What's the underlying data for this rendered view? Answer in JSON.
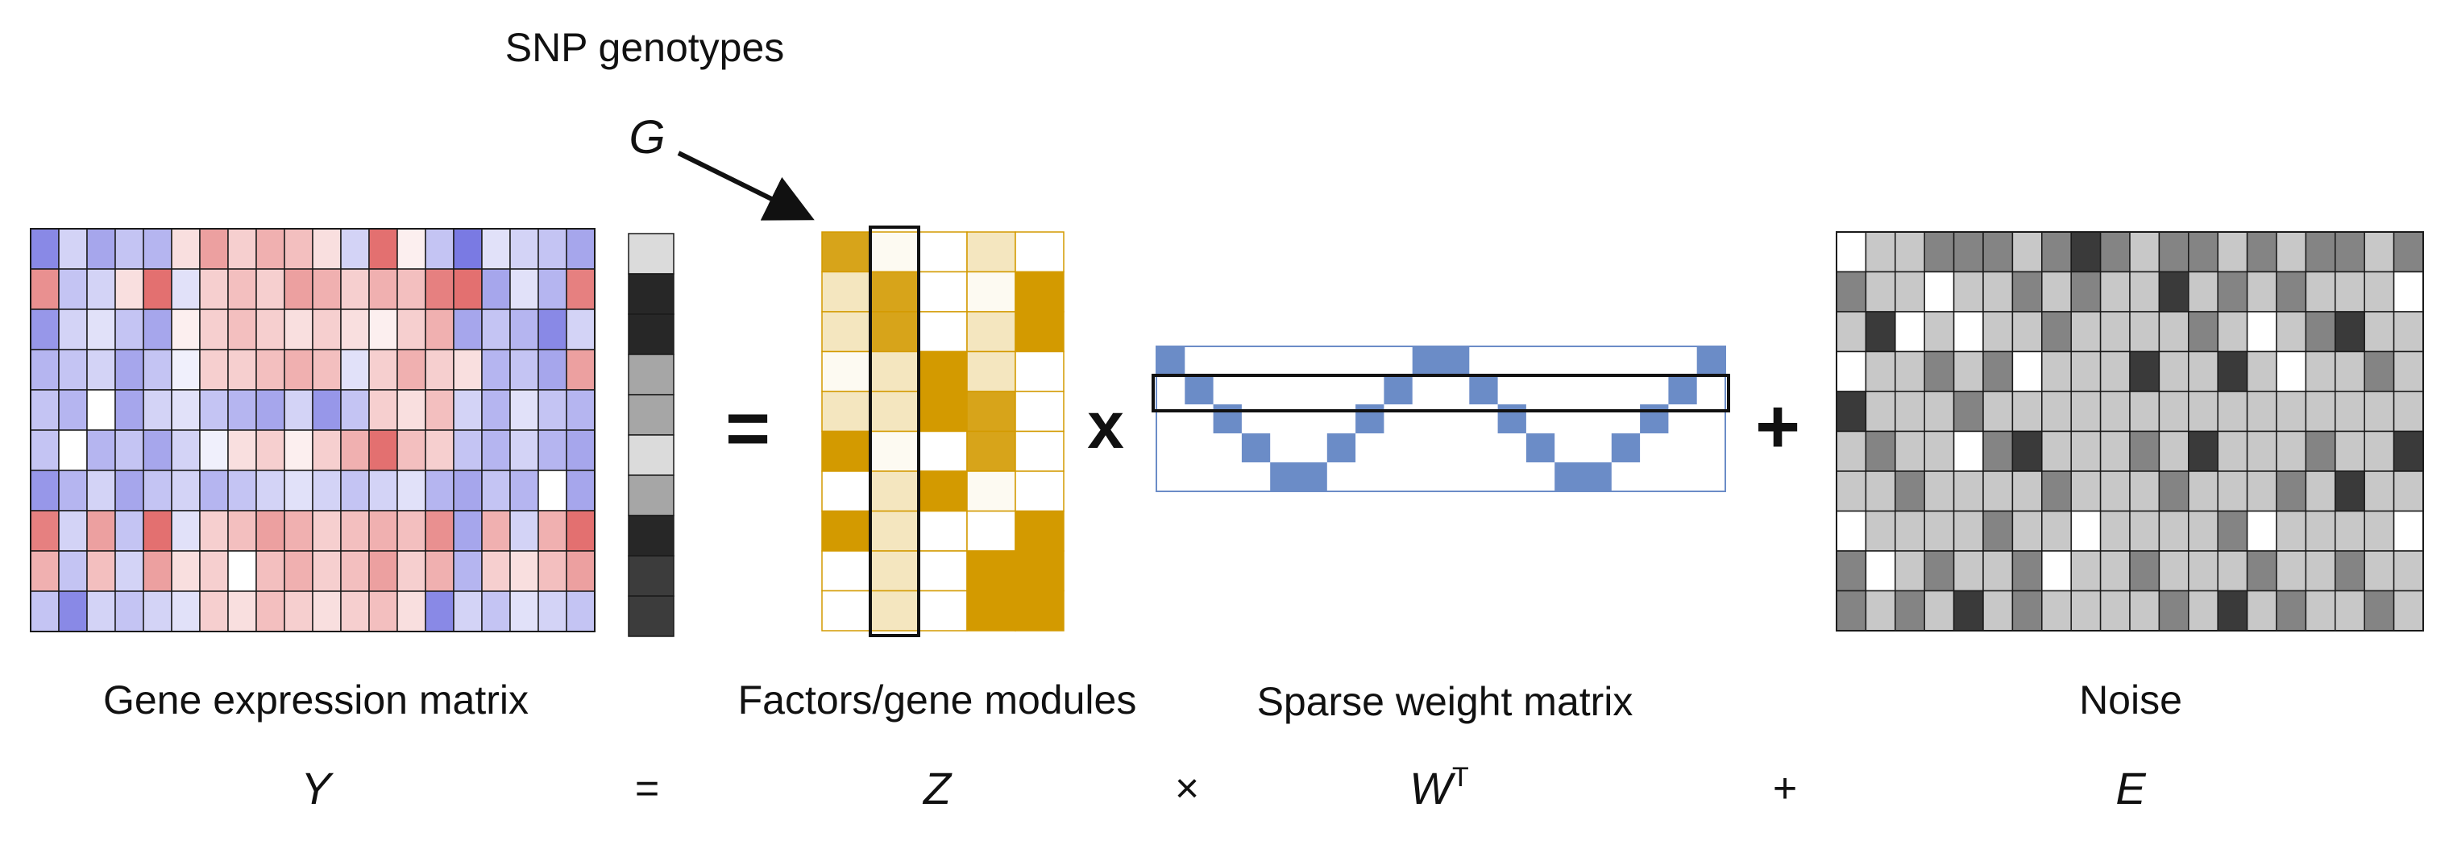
{
  "labels": {
    "snp_title": "SNP genotypes",
    "g_symbol": "G",
    "gene_expression": "Gene expression matrix",
    "factors": "Factors/gene modules",
    "sparse_weight": "Sparse weight matrix",
    "noise": "Noise"
  },
  "operators": {
    "equals": "=",
    "times": "x",
    "plus": "+"
  },
  "formula": {
    "y": "Y",
    "equals": "=",
    "z": "Z",
    "times": "×",
    "w": "W",
    "w_superscript": "T",
    "plus": "+",
    "e": "E"
  },
  "colors": {
    "expression_blue": "#6b6be0",
    "expression_red": "#e06060",
    "factor_gold": "#d39a00",
    "weight_blue": "#6b8cc7",
    "noise_dark": "#3a3a3a",
    "grid_line": "#1a1a1a"
  },
  "matrices": {
    "expression": {
      "rows": 10,
      "cols": 20,
      "values": [
        [
          -0.8,
          -0.3,
          -0.6,
          -0.4,
          -0.5,
          0.2,
          0.6,
          0.3,
          0.5,
          0.4,
          0.2,
          -0.3,
          0.9,
          0.1,
          -0.4,
          -0.9,
          -0.2,
          -0.3,
          -0.4,
          -0.6
        ],
        [
          0.7,
          -0.4,
          -0.3,
          0.2,
          0.9,
          -0.2,
          0.3,
          0.4,
          0.3,
          0.6,
          0.5,
          0.3,
          0.5,
          0.4,
          0.8,
          0.9,
          -0.6,
          -0.2,
          -0.5,
          0.8
        ],
        [
          -0.7,
          -0.3,
          -0.2,
          -0.4,
          -0.6,
          0.1,
          0.3,
          0.4,
          0.3,
          0.2,
          0.3,
          0.2,
          0.1,
          0.3,
          0.5,
          -0.6,
          -0.4,
          -0.5,
          -0.8,
          -0.3
        ],
        [
          -0.5,
          -0.4,
          -0.3,
          -0.6,
          -0.4,
          -0.1,
          0.3,
          0.3,
          0.4,
          0.5,
          0.4,
          -0.2,
          0.3,
          0.5,
          0.3,
          0.2,
          -0.5,
          -0.4,
          -0.6,
          0.6
        ],
        [
          -0.4,
          -0.5,
          0.0,
          -0.6,
          -0.3,
          -0.2,
          -0.4,
          -0.5,
          -0.6,
          -0.3,
          -0.7,
          -0.4,
          0.3,
          0.2,
          0.4,
          -0.3,
          -0.5,
          -0.2,
          -0.4,
          -0.5
        ],
        [
          -0.4,
          0.0,
          -0.5,
          -0.4,
          -0.6,
          -0.3,
          -0.1,
          0.2,
          0.3,
          0.1,
          0.3,
          0.5,
          0.9,
          0.4,
          0.3,
          -0.4,
          -0.5,
          -0.3,
          -0.5,
          -0.6
        ],
        [
          -0.7,
          -0.5,
          -0.3,
          -0.6,
          -0.4,
          -0.3,
          -0.5,
          -0.4,
          -0.3,
          -0.2,
          -0.3,
          -0.4,
          -0.3,
          -0.2,
          -0.5,
          -0.6,
          -0.4,
          -0.5,
          0.0,
          -0.6
        ],
        [
          0.8,
          -0.3,
          0.6,
          -0.4,
          0.9,
          -0.2,
          0.3,
          0.4,
          0.6,
          0.5,
          0.3,
          0.4,
          0.5,
          0.4,
          0.7,
          -0.6,
          0.5,
          -0.3,
          0.5,
          0.9
        ],
        [
          0.5,
          -0.4,
          0.4,
          -0.3,
          0.6,
          0.2,
          0.3,
          0.0,
          0.4,
          0.5,
          0.3,
          0.4,
          0.6,
          0.3,
          0.5,
          -0.5,
          0.3,
          0.2,
          0.4,
          0.6
        ],
        [
          -0.4,
          -0.8,
          -0.3,
          -0.4,
          -0.3,
          -0.2,
          0.3,
          0.2,
          0.4,
          0.3,
          0.2,
          0.3,
          0.4,
          0.2,
          -0.8,
          -0.3,
          -0.4,
          -0.2,
          -0.3,
          -0.4
        ]
      ]
    },
    "genotype": {
      "rows": 10,
      "values": [
        0.1,
        0.95,
        0.95,
        0.35,
        0.35,
        0.1,
        0.35,
        0.95,
        0.85,
        0.85
      ]
    },
    "factors": {
      "rows": 10,
      "cols": 5,
      "highlight_col": 1,
      "values": [
        [
          0.9,
          0.05,
          0.0,
          0.25,
          0.0
        ],
        [
          0.25,
          0.9,
          0.0,
          0.05,
          1.0
        ],
        [
          0.25,
          0.9,
          0.0,
          0.25,
          1.0
        ],
        [
          0.05,
          0.25,
          1.0,
          0.25,
          0.0
        ],
        [
          0.25,
          0.25,
          1.0,
          0.9,
          0.0
        ],
        [
          1.0,
          0.05,
          0.0,
          0.9,
          0.0
        ],
        [
          0.0,
          0.25,
          1.0,
          0.05,
          0.0
        ],
        [
          1.0,
          0.25,
          0.0,
          0.0,
          1.0
        ],
        [
          0.0,
          0.25,
          0.0,
          1.0,
          1.0
        ],
        [
          0.0,
          0.25,
          0.0,
          1.0,
          1.0
        ]
      ]
    },
    "weights": {
      "rows": 5,
      "cols": 20,
      "highlight_row": 1,
      "cells": [
        [
          0,
          0
        ],
        [
          1,
          1
        ],
        [
          2,
          2
        ],
        [
          3,
          3
        ],
        [
          4,
          4
        ],
        [
          4,
          5
        ],
        [
          3,
          6
        ],
        [
          2,
          7
        ],
        [
          1,
          8
        ],
        [
          0,
          9
        ],
        [
          0,
          10
        ],
        [
          1,
          11
        ],
        [
          2,
          12
        ],
        [
          3,
          13
        ],
        [
          4,
          14
        ],
        [
          4,
          15
        ],
        [
          3,
          16
        ],
        [
          2,
          17
        ],
        [
          1,
          18
        ],
        [
          0,
          19
        ]
      ]
    },
    "noise": {
      "rows": 10,
      "cols": 20,
      "values": [
        [
          0,
          1,
          1,
          2,
          2,
          2,
          1,
          2,
          3,
          2,
          1,
          2,
          2,
          1,
          2,
          1,
          2,
          2,
          1,
          2
        ],
        [
          2,
          1,
          1,
          0,
          1,
          1,
          2,
          1,
          2,
          1,
          1,
          3,
          1,
          2,
          1,
          2,
          1,
          1,
          1,
          0
        ],
        [
          1,
          3,
          0,
          1,
          0,
          1,
          1,
          2,
          1,
          1,
          1,
          1,
          2,
          1,
          0,
          1,
          2,
          3,
          1,
          1
        ],
        [
          0,
          1,
          1,
          2,
          1,
          2,
          0,
          1,
          1,
          1,
          3,
          1,
          1,
          3,
          1,
          0,
          1,
          1,
          2,
          1
        ],
        [
          3,
          1,
          1,
          1,
          2,
          1,
          1,
          1,
          1,
          1,
          1,
          1,
          1,
          1,
          1,
          1,
          1,
          1,
          1,
          1
        ],
        [
          1,
          2,
          1,
          1,
          0,
          2,
          3,
          1,
          1,
          1,
          2,
          1,
          3,
          1,
          1,
          1,
          2,
          1,
          1,
          3
        ],
        [
          1,
          1,
          2,
          1,
          1,
          1,
          1,
          2,
          1,
          1,
          1,
          2,
          1,
          1,
          1,
          2,
          1,
          3,
          1,
          1
        ],
        [
          0,
          1,
          1,
          1,
          1,
          2,
          1,
          1,
          0,
          1,
          1,
          1,
          1,
          2,
          0,
          1,
          1,
          1,
          1,
          0
        ],
        [
          2,
          0,
          1,
          2,
          1,
          1,
          2,
          0,
          1,
          1,
          2,
          1,
          1,
          1,
          2,
          1,
          1,
          2,
          1,
          1
        ],
        [
          2,
          1,
          2,
          1,
          3,
          1,
          2,
          1,
          1,
          1,
          1,
          2,
          1,
          3,
          1,
          2,
          1,
          1,
          2,
          1
        ]
      ]
    }
  }
}
